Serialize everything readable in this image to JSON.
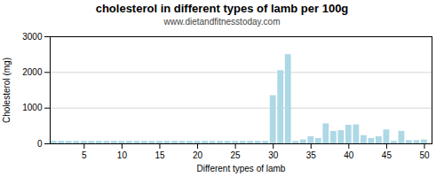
{
  "chart_data": {
    "type": "bar",
    "title": "cholesterol in different types of lamb per 100g",
    "subtitle": "www.dietandfitnesstoday.com",
    "xlabel": "Different types of lamb",
    "ylabel": "Cholesterol (mg)",
    "color": "#add8e6",
    "x": [
      1,
      2,
      3,
      4,
      5,
      6,
      7,
      8,
      9,
      10,
      11,
      12,
      13,
      14,
      15,
      16,
      17,
      18,
      19,
      20,
      21,
      22,
      23,
      24,
      25,
      26,
      27,
      28,
      29,
      30,
      31,
      32,
      33,
      34,
      35,
      36,
      37,
      38,
      39,
      40,
      41,
      42,
      43,
      44,
      45,
      46,
      47,
      48,
      49,
      50
    ],
    "values": [
      70,
      70,
      70,
      70,
      70,
      70,
      70,
      70,
      70,
      70,
      70,
      70,
      70,
      70,
      70,
      70,
      70,
      70,
      70,
      70,
      70,
      70,
      70,
      70,
      70,
      70,
      70,
      70,
      70,
      1350,
      2050,
      2500,
      70,
      110,
      200,
      150,
      560,
      350,
      370,
      520,
      530,
      230,
      150,
      200,
      390,
      70,
      350,
      90,
      90,
      110
    ],
    "xlim": [
      0.5,
      51
    ],
    "xticks": [
      5,
      10,
      15,
      20,
      25,
      30,
      35,
      40,
      45,
      50
    ],
    "ylim": [
      0,
      3000
    ],
    "yticks": [
      0,
      1000,
      2000,
      3000
    ],
    "grid": true
  }
}
